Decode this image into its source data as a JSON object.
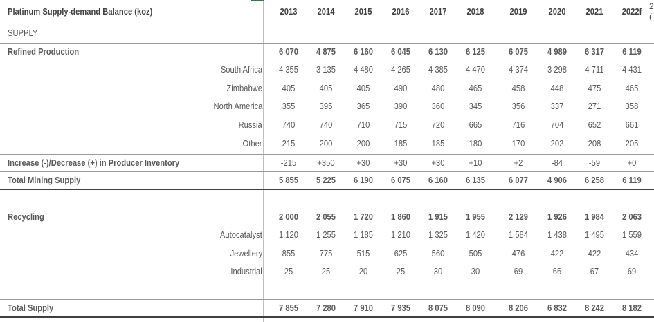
{
  "table": {
    "title": "Platinum Supply-demand Balance (koz)",
    "section_label": "SUPPLY",
    "years": [
      "2013",
      "2014",
      "2015",
      "2016",
      "2017",
      "2018",
      "2019",
      "2020",
      "2021",
      "2022f"
    ],
    "clipped_edge_glyphs": [
      "2",
      "("
    ],
    "rows": [
      {
        "label": "Refined Production",
        "style": "bold",
        "values": [
          "6 070",
          "4 875",
          "6 160",
          "6 045",
          "6 130",
          "6 125",
          "6 075",
          "4 989",
          "6 317",
          "6 119"
        ]
      },
      {
        "label": "South Africa",
        "style": "sub",
        "values": [
          "4 355",
          "3 135",
          "4 480",
          "4 265",
          "4 385",
          "4 470",
          "4 374",
          "3 298",
          "4 711",
          "4 431"
        ]
      },
      {
        "label": "Zimbabwe",
        "style": "sub",
        "values": [
          "405",
          "405",
          "405",
          "490",
          "480",
          "465",
          "458",
          "448",
          "475",
          "465"
        ]
      },
      {
        "label": "North America",
        "style": "sub",
        "values": [
          "355",
          "395",
          "365",
          "390",
          "360",
          "345",
          "356",
          "337",
          "271",
          "358"
        ]
      },
      {
        "label": "Russia",
        "style": "sub",
        "values": [
          "740",
          "740",
          "710",
          "715",
          "720",
          "665",
          "716",
          "704",
          "652",
          "661"
        ]
      },
      {
        "label": "Other",
        "style": "sub",
        "values": [
          "215",
          "200",
          "200",
          "185",
          "185",
          "180",
          "170",
          "202",
          "208",
          "205"
        ]
      },
      {
        "label": "Increase (-)/Decrease (+) in Producer Inventory",
        "style": "bold-light",
        "values": [
          "-215",
          "+350",
          "+30",
          "+30",
          "+30",
          "+10",
          "+2",
          "-84",
          "-59",
          "+0"
        ]
      },
      {
        "label": "Total Mining Supply",
        "style": "bold",
        "values": [
          "5 855",
          "5 225",
          "6 190",
          "6 075",
          "6 160",
          "6 135",
          "6 077",
          "4 906",
          "6 258",
          "6 119"
        ]
      },
      {
        "label": "Recycling",
        "style": "bold",
        "values": [
          "2 000",
          "2 055",
          "1 720",
          "1 860",
          "1 915",
          "1 955",
          "2 129",
          "1 926",
          "1 984",
          "2 063"
        ]
      },
      {
        "label": "Autocatalyst",
        "style": "sub",
        "values": [
          "1 120",
          "1 255",
          "1 185",
          "1 210",
          "1 325",
          "1 420",
          "1 584",
          "1 438",
          "1 495",
          "1 559"
        ]
      },
      {
        "label": "Jewellery",
        "style": "sub",
        "values": [
          "855",
          "775",
          "515",
          "625",
          "560",
          "505",
          "476",
          "422",
          "422",
          "434"
        ]
      },
      {
        "label": "Industrial",
        "style": "sub",
        "values": [
          "25",
          "25",
          "20",
          "25",
          "30",
          "30",
          "69",
          "66",
          "67",
          "69"
        ]
      },
      {
        "label": "Total Supply",
        "style": "bold",
        "values": [
          "7 855",
          "7 280",
          "7 910",
          "7 935",
          "8 075",
          "8 090",
          "8 206",
          "6 832",
          "8 242",
          "8 182"
        ]
      }
    ]
  }
}
